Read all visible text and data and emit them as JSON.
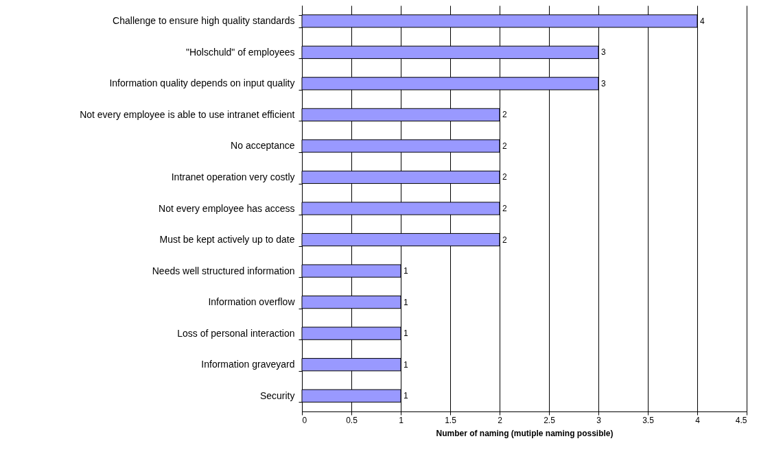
{
  "chart_data": {
    "type": "bar",
    "orientation": "horizontal",
    "xlabel": "Number of naming (mutiple naming possible)",
    "categories": [
      "Challenge to ensure high quality standards",
      "\"Holschuld\" of employees",
      "Information quality depends on input quality",
      "Not every employee is able to use intranet efficient",
      "No acceptance",
      "Intranet operation very costly",
      "Not every employee has access",
      "Must be kept actively up to date",
      "Needs well structured information",
      "Information overflow",
      "Loss of personal interaction",
      "Information graveyard",
      "Security"
    ],
    "values": [
      4,
      3,
      3,
      2,
      2,
      2,
      2,
      2,
      1,
      1,
      1,
      1,
      1
    ],
    "color": "#9999ff",
    "xlim": [
      0,
      4.5
    ],
    "xticks": [
      0,
      0.5,
      1,
      1.5,
      2,
      2.5,
      3,
      3.5,
      4,
      4.5
    ],
    "grid": "x",
    "data_labels": true
  }
}
